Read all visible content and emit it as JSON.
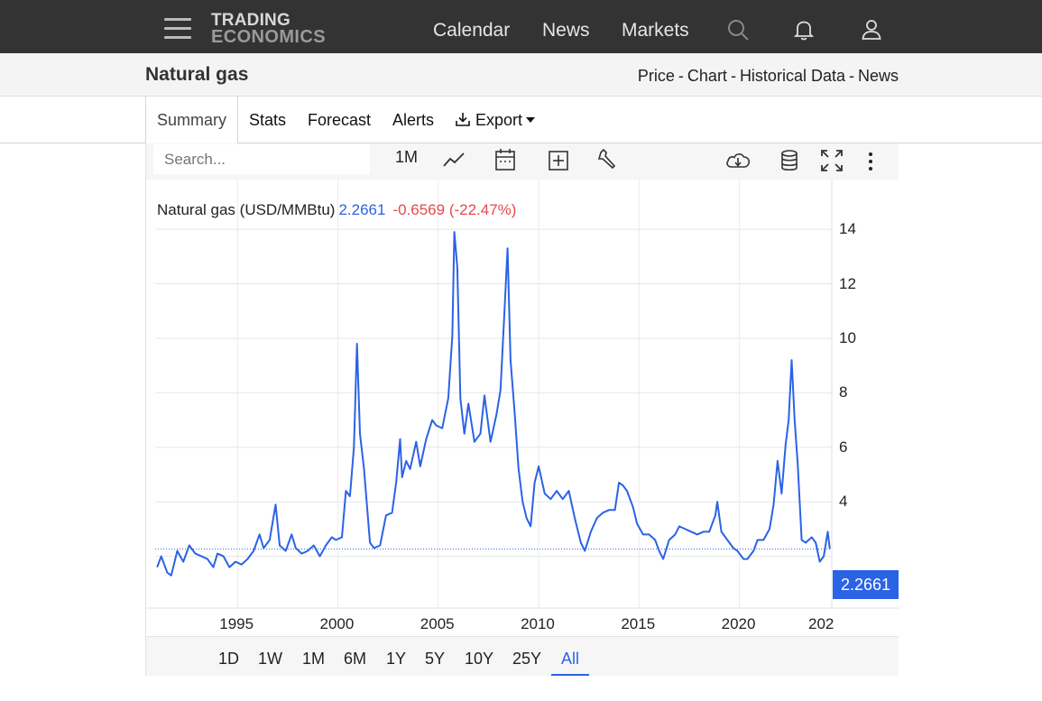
{
  "header": {
    "logo_line1": "TRADING",
    "logo_line2": "ECONOMICS",
    "nav": [
      "Calendar",
      "News",
      "Markets"
    ],
    "icons": [
      "menu-icon",
      "search-icon",
      "bell-icon",
      "user-icon"
    ]
  },
  "page": {
    "title": "Natural gas",
    "breadcrumbs": [
      "Price",
      "Chart",
      "Historical Data",
      "News"
    ],
    "breadcrumb_sep": "-"
  },
  "tabs": {
    "items": [
      "Summary",
      "Stats",
      "Forecast",
      "Alerts",
      "Export"
    ],
    "active": "Summary"
  },
  "toolbar": {
    "search_placeholder": "Search...",
    "interval": "1M",
    "icons": [
      "line-chart-icon",
      "calendar-icon",
      "add-indicator-icon",
      "wrench-icon",
      "download-cloud-icon",
      "database-icon",
      "fullscreen-icon",
      "more-vertical-icon"
    ]
  },
  "legend": {
    "name": "Natural gas (USD/MMBtu)",
    "value": "2.2661",
    "change": "-0.6569 (-22.47%)"
  },
  "price_badge": "2.2661",
  "range_buttons": [
    "1D",
    "1W",
    "1M",
    "6M",
    "1Y",
    "5Y",
    "10Y",
    "25Y",
    "All"
  ],
  "range_active": "All",
  "colors": {
    "series": "#2b63e6",
    "change_negative": "#e44a4a",
    "topbar": "#333333"
  },
  "chart_data": {
    "type": "line",
    "title": "Natural gas (USD/MMBtu)",
    "xlabel": "",
    "ylabel": "",
    "x_ticks": [
      "1995",
      "2000",
      "2005",
      "2010",
      "2015",
      "2020",
      "202"
    ],
    "y_ticks": [
      "4",
      "6",
      "8",
      "10",
      "12",
      "14"
    ],
    "xlim": [
      1990.9,
      2024.6
    ],
    "ylim": [
      0.1,
      14.5
    ],
    "grid": true,
    "last_value": 2.2661,
    "series": [
      {
        "x": [
          1991.0,
          1991.2,
          1991.5,
          1991.7,
          1992.0,
          1992.3,
          1992.6,
          1992.9,
          1993.2,
          1993.5,
          1993.8,
          1994.0,
          1994.3,
          1994.6,
          1994.9,
          1995.2,
          1995.5,
          1995.8,
          1996.1,
          1996.3,
          1996.6,
          1996.9,
          1997.1,
          1997.4,
          1997.7,
          1997.9,
          1998.2,
          1998.5,
          1998.8,
          1999.1,
          1999.4,
          1999.7,
          1999.9,
          2000.2,
          2000.4,
          2000.6,
          2000.8,
          2000.95,
          2001.1,
          2001.3,
          2001.6,
          2001.8,
          2002.1,
          2002.4,
          2002.7,
          2002.9,
          2003.1,
          2003.2,
          2003.4,
          2003.6,
          2003.9,
          2004.1,
          2004.4,
          2004.7,
          2004.9,
          2005.2,
          2005.5,
          2005.7,
          2005.8,
          2005.95,
          2006.1,
          2006.3,
          2006.5,
          2006.8,
          2007.1,
          2007.3,
          2007.6,
          2007.9,
          2008.1,
          2008.3,
          2008.45,
          2008.6,
          2008.8,
          2009.0,
          2009.2,
          2009.4,
          2009.6,
          2009.8,
          2010.0,
          2010.3,
          2010.6,
          2010.9,
          2011.2,
          2011.5,
          2011.8,
          2012.1,
          2012.3,
          2012.6,
          2012.9,
          2013.2,
          2013.5,
          2013.8,
          2014.0,
          2014.2,
          2014.4,
          2014.7,
          2014.9,
          2015.2,
          2015.5,
          2015.8,
          2016.0,
          2016.2,
          2016.5,
          2016.8,
          2017.0,
          2017.3,
          2017.6,
          2017.9,
          2018.2,
          2018.5,
          2018.8,
          2018.9,
          2019.1,
          2019.4,
          2019.7,
          2019.9,
          2020.2,
          2020.4,
          2020.7,
          2020.9,
          2021.2,
          2021.5,
          2021.7,
          2021.9,
          2022.1,
          2022.3,
          2022.45,
          2022.6,
          2022.75,
          2022.9,
          2023.1,
          2023.3,
          2023.6,
          2023.8,
          2024.0,
          2024.2,
          2024.4,
          2024.5
        ],
        "y": [
          1.6,
          2.0,
          1.4,
          1.3,
          2.2,
          1.8,
          2.4,
          2.1,
          2.0,
          1.9,
          1.6,
          2.1,
          2.0,
          1.6,
          1.8,
          1.7,
          1.9,
          2.2,
          2.8,
          2.3,
          2.6,
          3.9,
          2.4,
          2.2,
          2.8,
          2.3,
          2.1,
          2.2,
          2.4,
          2.0,
          2.4,
          2.7,
          2.6,
          2.7,
          4.4,
          4.2,
          6.0,
          9.8,
          6.5,
          5.2,
          2.5,
          2.3,
          2.4,
          3.5,
          3.6,
          4.7,
          6.3,
          4.9,
          5.5,
          5.2,
          6.2,
          5.3,
          6.3,
          7.0,
          6.8,
          6.7,
          7.8,
          10.1,
          13.9,
          12.6,
          7.8,
          6.5,
          7.6,
          6.2,
          6.5,
          7.9,
          6.2,
          7.2,
          8.1,
          11.0,
          13.3,
          9.2,
          7.3,
          5.2,
          4.0,
          3.4,
          3.1,
          4.7,
          5.3,
          4.3,
          4.1,
          4.4,
          4.1,
          4.4,
          3.4,
          2.5,
          2.2,
          2.9,
          3.4,
          3.6,
          3.7,
          3.7,
          4.7,
          4.6,
          4.4,
          3.8,
          3.2,
          2.8,
          2.8,
          2.6,
          2.2,
          1.9,
          2.6,
          2.8,
          3.1,
          3.0,
          2.9,
          2.8,
          2.9,
          2.9,
          3.5,
          4.0,
          2.9,
          2.6,
          2.3,
          2.2,
          1.9,
          1.9,
          2.2,
          2.6,
          2.6,
          3.0,
          3.9,
          5.5,
          4.3,
          6.1,
          7.0,
          9.2,
          7.0,
          5.4,
          2.6,
          2.5,
          2.7,
          2.5,
          1.8,
          2.0,
          2.9,
          2.27
        ]
      }
    ]
  }
}
